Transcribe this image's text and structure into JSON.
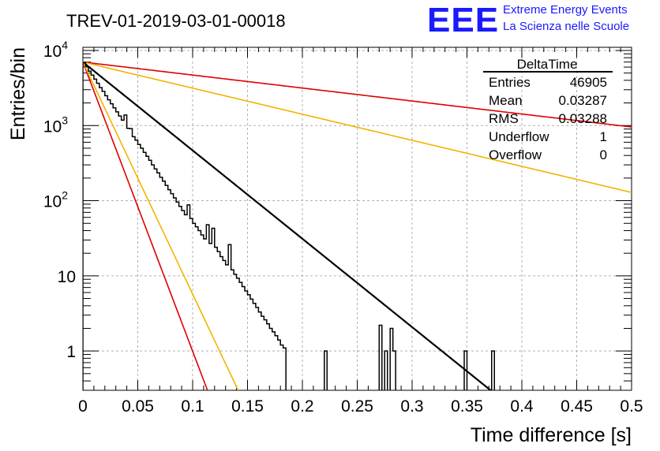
{
  "chart_data": {
    "type": "histogram",
    "title": "TREV-01-2019-03-01-00018",
    "xlabel": "Time difference [s]",
    "ylabel": "Entries/bin",
    "xlim": [
      0,
      0.5
    ],
    "ylim": [
      0.3,
      11000
    ],
    "yscale": "log",
    "grid": true,
    "x_ticks": [
      "0",
      "0.05",
      "0.1",
      "0.15",
      "0.2",
      "0.25",
      "0.3",
      "0.35",
      "0.4",
      "0.45",
      "0.5"
    ],
    "y_ticks": [
      {
        "base": "10",
        "exp": "4",
        "value": 10000
      },
      {
        "base": "10",
        "exp": "3",
        "value": 1000
      },
      {
        "base": "10",
        "exp": "2",
        "value": 100
      },
      {
        "base": "10",
        "exp": "",
        "value": 10
      },
      {
        "base": "1",
        "exp": "",
        "value": 1
      }
    ],
    "bin_width": 0.0025,
    "histogram_bins": [
      6900,
      6100,
      5300,
      4700,
      4150,
      3650,
      3200,
      2850,
      2500,
      2200,
      1950,
      1720,
      1520,
      1340,
      1180,
      1380,
      920,
      910,
      710,
      640,
      560,
      500,
      440,
      390,
      345,
      300,
      265,
      235,
      205,
      182,
      160,
      140,
      124,
      109,
      96,
      84,
      74,
      65,
      88,
      58,
      50,
      45,
      40,
      35,
      31,
      48,
      27,
      43,
      24,
      21,
      18,
      16,
      14,
      26,
      12,
      10.5,
      9.3,
      8.2,
      7.2,
      6.3,
      5.6,
      4.9,
      4.3,
      3.8,
      3.3,
      2.9,
      2.6,
      2.3,
      2.0,
      1.8,
      1.6,
      1.4,
      1.2,
      1.1,
      0.1,
      0.1,
      0.1,
      0.1,
      0.1,
      0.1
    ],
    "histogram_spikes": [
      {
        "x": 0.2175,
        "values": [
          0.1,
          1,
          0.1
        ]
      },
      {
        "x": 0.27,
        "values": [
          2.2,
          0.1,
          1.0,
          0.1,
          2.0,
          1.0,
          0.1
        ]
      },
      {
        "x": 0.3475,
        "values": [
          1
        ]
      },
      {
        "x": 0.3725,
        "values": [
          1
        ]
      }
    ],
    "fits": [
      {
        "color": "#000000",
        "A": 7000,
        "slope": 27.07,
        "width": 2.2
      },
      {
        "color": "#dd0000",
        "A": 7000,
        "slope": 3.98,
        "width": 1.6
      },
      {
        "color": "#f2b400",
        "A": 7000,
        "slope": 7.99,
        "width": 1.6
      },
      {
        "color": "#dd0000",
        "A": 7000,
        "slope": 88.6,
        "width": 1.6
      },
      {
        "color": "#f2b400",
        "A": 7000,
        "slope": 71.1,
        "width": 1.6
      }
    ],
    "stats_box": {
      "name": "DeltaTime",
      "rows": [
        {
          "label": "Entries",
          "value": "46905"
        },
        {
          "label": "Mean",
          "value": "0.03287"
        },
        {
          "label": "RMS",
          "value": "0.03288"
        },
        {
          "label": "Underflow",
          "value": "1"
        },
        {
          "label": "Overflow",
          "value": "0"
        }
      ]
    },
    "logo": {
      "text": "EEE",
      "color": "#1a1aff",
      "line1": "Extreme Energy Events",
      "line2": "La Scienza nelle Scuole"
    }
  }
}
